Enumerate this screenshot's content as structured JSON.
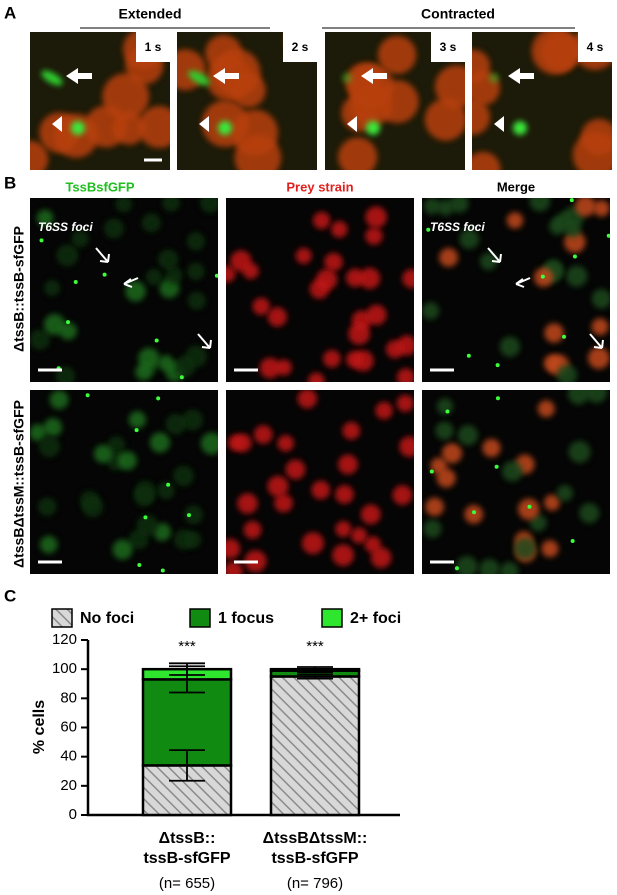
{
  "panel_a": {
    "label": "A",
    "headers": [
      "Extended",
      "Contracted"
    ],
    "time_labels": [
      "1 s",
      "2 s",
      "3 s",
      "4 s"
    ]
  },
  "panel_b": {
    "label": "B",
    "channels": [
      "TssBsfGFP",
      "Prey strain",
      "Merge"
    ],
    "rows": [
      "ΔtssB::tssB-sfGFP",
      "ΔtssBΔtssM::tssB-sfGFP"
    ],
    "annotation": "T6SS foci"
  },
  "chart_data": {
    "type": "bar",
    "stacked": true,
    "label": "C",
    "ylabel": "% cells",
    "categories": [
      [
        "ΔtssB::",
        "tssB-sfGFP"
      ],
      [
        "ΔtssBΔtssM::",
        "tssB-sfGFP"
      ]
    ],
    "n_labels": [
      "(n= 655)",
      "(n= 796)"
    ],
    "significance": [
      "***",
      "***"
    ],
    "series": [
      {
        "name": "No foci",
        "color": "#c4c4c4",
        "hatch": true,
        "values": [
          34,
          95
        ],
        "errors": [
          10.5,
          1.5
        ]
      },
      {
        "name": "1 focus",
        "color": "#118a11",
        "values": [
          59,
          4
        ],
        "errors": [
          9,
          1
        ]
      },
      {
        "name": "2+ foci",
        "color": "#2ee62e",
        "values": [
          7,
          1
        ],
        "errors": [
          4,
          1.5
        ]
      }
    ],
    "ylim": [
      0,
      120
    ],
    "yticks": [
      0,
      20,
      40,
      60,
      80,
      100,
      120
    ],
    "legend": "top"
  }
}
